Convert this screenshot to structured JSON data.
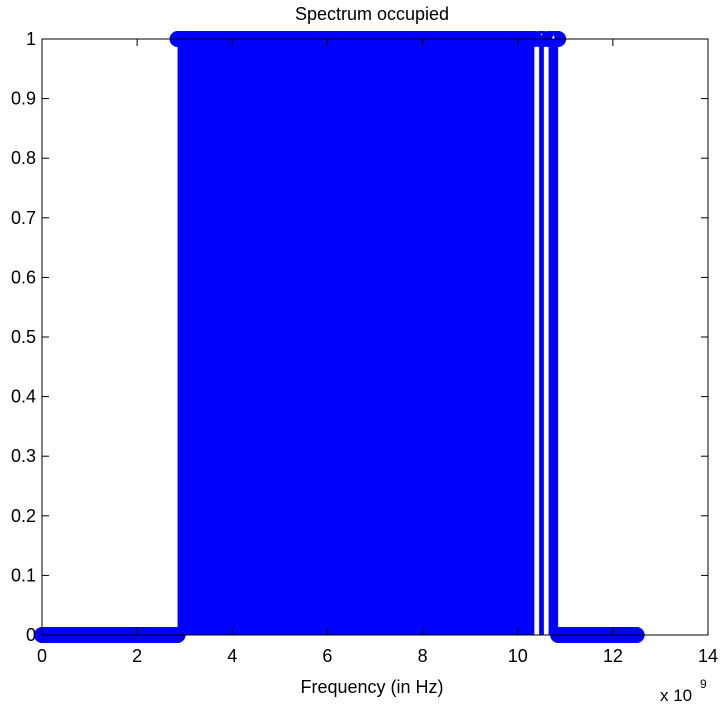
{
  "chart_data": {
    "type": "scatter",
    "title": "Spectrum occupied",
    "xlabel": "Frequency (in Hz)",
    "ylabel": "",
    "x_multiplier_label": "x 10",
    "x_multiplier_exponent": "9",
    "xlim": [
      0,
      14
    ],
    "ylim": [
      0,
      1
    ],
    "x_ticks": [
      0,
      2,
      4,
      6,
      8,
      10,
      12,
      14
    ],
    "y_ticks": [
      0,
      0.1,
      0.2,
      0.3,
      0.4,
      0.5,
      0.6,
      0.7,
      0.8,
      0.9,
      1
    ],
    "grid": false,
    "legend": "none",
    "marker": "circle",
    "stem_lines": true,
    "series": [
      {
        "segments": [
          {
            "x_start": 0.0,
            "x_end": 2.85,
            "value": 0
          },
          {
            "x_start": 2.85,
            "x_end": 10.35,
            "value": 1
          },
          {
            "x_start": 10.45,
            "x_end": 10.55,
            "value": 1
          },
          {
            "x_start": 10.65,
            "x_end": 10.85,
            "value": 1
          },
          {
            "x_start": 10.85,
            "x_end": 12.5,
            "value": 0
          }
        ],
        "sample_step": 0.03,
        "color": "#0000ff"
      }
    ]
  }
}
